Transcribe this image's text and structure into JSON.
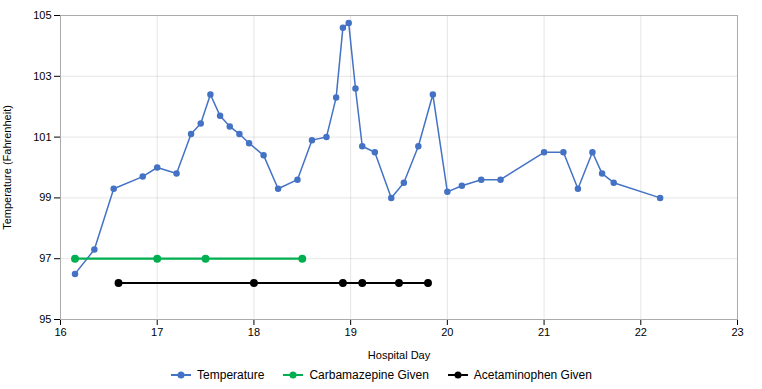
{
  "chart_data": {
    "type": "line",
    "xlabel": "Hospital Day",
    "ylabel": "Temperature (Fahrenheit)",
    "series": [
      {
        "name": "Temperature",
        "color": "#4472C4",
        "marker": "circle",
        "line_style": "solid",
        "x": [
          16.15,
          16.35,
          16.55,
          16.85,
          17.0,
          17.2,
          17.35,
          17.45,
          17.55,
          17.65,
          17.75,
          17.85,
          17.95,
          18.1,
          18.25,
          18.45,
          18.6,
          18.75,
          18.85,
          18.92,
          18.98,
          19.05,
          19.12,
          19.25,
          19.42,
          19.55,
          19.7,
          19.85,
          20.0,
          20.15,
          20.35,
          20.55,
          21.0,
          21.2,
          21.35,
          21.5,
          21.6,
          21.72,
          22.2
        ],
        "values": [
          96.5,
          97.3,
          99.3,
          99.7,
          100.0,
          99.8,
          101.1,
          101.45,
          102.4,
          101.7,
          101.35,
          101.1,
          100.8,
          100.4,
          99.3,
          99.6,
          100.9,
          101.0,
          102.3,
          104.6,
          104.75,
          102.6,
          100.7,
          100.5,
          99.0,
          99.5,
          100.7,
          102.4,
          99.2,
          99.4,
          99.6,
          99.6,
          100.5,
          100.5,
          99.3,
          100.5,
          99.8,
          99.5,
          99.0
        ]
      },
      {
        "name": "Carbamazepine Given",
        "color": "#00B050",
        "marker": "circle",
        "line_style": "solid",
        "x": [
          16.15,
          17.0,
          17.5,
          18.5
        ],
        "values": [
          97.0,
          97.0,
          97.0,
          97.0
        ]
      },
      {
        "name": "Acetaminophen Given",
        "color": "#000000",
        "marker": "circle",
        "line_style": "solid",
        "x": [
          16.6,
          18.0,
          18.92,
          19.12,
          19.5,
          19.8
        ],
        "values": [
          96.2,
          96.2,
          96.2,
          96.2,
          96.2,
          96.2
        ]
      }
    ],
    "xlim": [
      16,
      23
    ],
    "ylim": [
      95,
      105
    ],
    "xticks": [
      16,
      17,
      18,
      19,
      20,
      21,
      22,
      23
    ],
    "yticks": [
      95,
      97,
      99,
      101,
      103,
      105
    ],
    "grid": true,
    "legend": "bottom"
  }
}
